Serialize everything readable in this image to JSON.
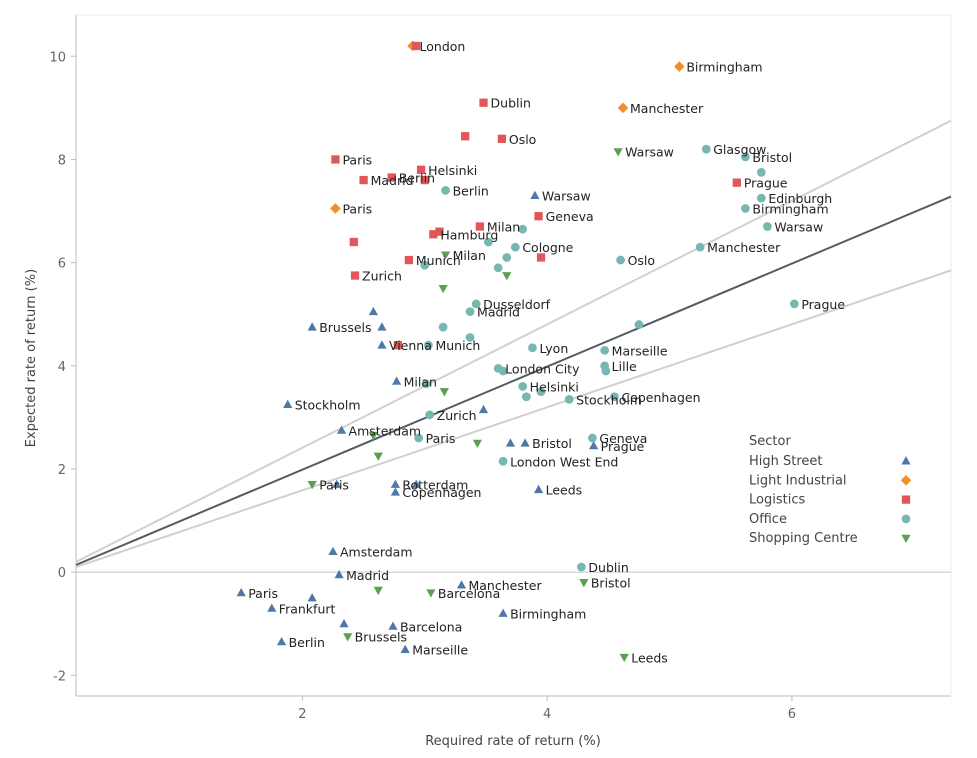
{
  "chart_data": {
    "type": "scatter",
    "title": "",
    "xlabel": "Required rate of return (%)",
    "ylabel": "Expected rate of return (%)",
    "xlim": [
      0.15,
      7.3
    ],
    "ylim": [
      -2.4,
      10.8
    ],
    "xticks": [
      2,
      4,
      6
    ],
    "yticks": [
      -2,
      0,
      2,
      4,
      6,
      8,
      10
    ],
    "grid": false,
    "zero_line": true,
    "legend": {
      "title": "Sector",
      "position": "right",
      "items": [
        {
          "name": "High Street",
          "color": "#4e79a7",
          "marker": "triangle-up"
        },
        {
          "name": "Light Industrial",
          "color": "#f28e2b",
          "marker": "diamond"
        },
        {
          "name": "Logistics",
          "color": "#e15759",
          "marker": "square"
        },
        {
          "name": "Office",
          "color": "#76b7b2",
          "marker": "circle"
        },
        {
          "name": "Shopping Centre",
          "color": "#59a14f",
          "marker": "triangle-down"
        }
      ]
    },
    "reference_lines": [
      {
        "style": "center",
        "color": "#555c66",
        "points": [
          [
            0.15,
            0.14
          ],
          [
            7.3,
            7.28
          ]
        ]
      },
      {
        "style": "band",
        "color": "#d0d0d0",
        "points": [
          [
            0.15,
            0.2
          ],
          [
            7.3,
            8.75
          ]
        ]
      },
      {
        "style": "band",
        "color": "#d0d0d0",
        "points": [
          [
            0.15,
            0.1
          ],
          [
            7.3,
            5.85
          ]
        ]
      }
    ],
    "series": [
      {
        "name": "High Street",
        "points": [
          {
            "x": 3.9,
            "y": 7.3,
            "label": "Warsaw"
          },
          {
            "x": 2.08,
            "y": 4.75,
            "label": "Brussels"
          },
          {
            "x": 2.58,
            "y": 5.05,
            "label": ""
          },
          {
            "x": 2.65,
            "y": 4.75,
            "label": ""
          },
          {
            "x": 2.65,
            "y": 4.4,
            "label": "Vienna"
          },
          {
            "x": 2.77,
            "y": 3.7,
            "label": "Milan"
          },
          {
            "x": 1.88,
            "y": 3.25,
            "label": "Stockholm"
          },
          {
            "x": 2.32,
            "y": 2.75,
            "label": "Amsterdam"
          },
          {
            "x": 3.48,
            "y": 3.15,
            "label": ""
          },
          {
            "x": 3.7,
            "y": 2.5,
            "label": ""
          },
          {
            "x": 3.82,
            "y": 2.5,
            "label": "Bristol"
          },
          {
            "x": 4.38,
            "y": 2.45,
            "label": "Prague"
          },
          {
            "x": 2.28,
            "y": 1.7,
            "label": ""
          },
          {
            "x": 2.76,
            "y": 1.7,
            "label": "Rotterdam"
          },
          {
            "x": 2.76,
            "y": 1.55,
            "label": "Copenhagen"
          },
          {
            "x": 2.93,
            "y": 1.7,
            "label": ""
          },
          {
            "x": 3.93,
            "y": 1.6,
            "label": "Leeds"
          },
          {
            "x": 2.25,
            "y": 0.4,
            "label": "Amsterdam"
          },
          {
            "x": 2.3,
            "y": -0.05,
            "label": "Madrid"
          },
          {
            "x": 1.5,
            "y": -0.4,
            "label": "Paris"
          },
          {
            "x": 1.75,
            "y": -0.7,
            "label": "Frankfurt"
          },
          {
            "x": 2.08,
            "y": -0.5,
            "label": ""
          },
          {
            "x": 1.83,
            "y": -1.35,
            "label": "Berlin"
          },
          {
            "x": 2.34,
            "y": -1.0,
            "label": ""
          },
          {
            "x": 2.74,
            "y": -1.05,
            "label": "Barcelona"
          },
          {
            "x": 2.84,
            "y": -1.5,
            "label": "Marseille"
          },
          {
            "x": 3.3,
            "y": -0.25,
            "label": "Manchester"
          },
          {
            "x": 3.64,
            "y": -0.8,
            "label": "Birmingham"
          }
        ]
      },
      {
        "name": "Light Industrial",
        "points": [
          {
            "x": 2.9,
            "y": 10.2,
            "label": "London"
          },
          {
            "x": 5.08,
            "y": 9.8,
            "label": "Birmingham"
          },
          {
            "x": 4.62,
            "y": 9.0,
            "label": "Manchester"
          },
          {
            "x": 2.27,
            "y": 7.05,
            "label": "Paris"
          }
        ]
      },
      {
        "name": "Logistics",
        "points": [
          {
            "x": 2.93,
            "y": 10.2,
            "label": ""
          },
          {
            "x": 3.48,
            "y": 9.1,
            "label": "Dublin"
          },
          {
            "x": 3.33,
            "y": 8.45,
            "label": ""
          },
          {
            "x": 3.63,
            "y": 8.4,
            "label": "Oslo"
          },
          {
            "x": 2.27,
            "y": 8.0,
            "label": "Paris"
          },
          {
            "x": 2.97,
            "y": 7.8,
            "label": "Helsinki"
          },
          {
            "x": 2.5,
            "y": 7.6,
            "label": "Madrid"
          },
          {
            "x": 2.73,
            "y": 7.65,
            "label": "Berlin"
          },
          {
            "x": 3.0,
            "y": 7.6,
            "label": ""
          },
          {
            "x": 5.55,
            "y": 7.55,
            "label": "Prague"
          },
          {
            "x": 3.93,
            "y": 6.9,
            "label": "Geneva"
          },
          {
            "x": 3.45,
            "y": 6.7,
            "label": "Milan"
          },
          {
            "x": 3.07,
            "y": 6.55,
            "label": "Hamburg"
          },
          {
            "x": 3.12,
            "y": 6.6,
            "label": ""
          },
          {
            "x": 2.42,
            "y": 6.4,
            "label": ""
          },
          {
            "x": 2.87,
            "y": 6.05,
            "label": "Munich"
          },
          {
            "x": 3.95,
            "y": 6.1,
            "label": ""
          },
          {
            "x": 2.43,
            "y": 5.75,
            "label": "Zurich"
          },
          {
            "x": 2.78,
            "y": 4.4,
            "label": ""
          }
        ]
      },
      {
        "name": "Office",
        "points": [
          {
            "x": 5.3,
            "y": 8.2,
            "label": "Glasgow"
          },
          {
            "x": 5.62,
            "y": 8.05,
            "label": "Bristol"
          },
          {
            "x": 5.75,
            "y": 7.75,
            "label": ""
          },
          {
            "x": 3.17,
            "y": 7.4,
            "label": "Berlin"
          },
          {
            "x": 5.62,
            "y": 7.05,
            "label": "Birmingham"
          },
          {
            "x": 5.75,
            "y": 7.25,
            "label": "Edinburgh"
          },
          {
            "x": 5.8,
            "y": 6.7,
            "label": "Warsaw"
          },
          {
            "x": 3.8,
            "y": 6.65,
            "label": ""
          },
          {
            "x": 3.52,
            "y": 6.4,
            "label": ""
          },
          {
            "x": 3.74,
            "y": 6.3,
            "label": "Cologne"
          },
          {
            "x": 3.67,
            "y": 6.1,
            "label": ""
          },
          {
            "x": 3.6,
            "y": 5.9,
            "label": ""
          },
          {
            "x": 5.25,
            "y": 6.3,
            "label": "Manchester"
          },
          {
            "x": 4.6,
            "y": 6.05,
            "label": "Oslo"
          },
          {
            "x": 3.0,
            "y": 5.95,
            "label": ""
          },
          {
            "x": 3.42,
            "y": 5.2,
            "label": "Dusseldorf"
          },
          {
            "x": 3.37,
            "y": 5.05,
            "label": "Madrid"
          },
          {
            "x": 6.02,
            "y": 5.2,
            "label": "Prague"
          },
          {
            "x": 3.15,
            "y": 4.75,
            "label": ""
          },
          {
            "x": 4.75,
            "y": 4.8,
            "label": ""
          },
          {
            "x": 3.37,
            "y": 4.55,
            "label": ""
          },
          {
            "x": 3.03,
            "y": 4.4,
            "label": "Munich"
          },
          {
            "x": 3.88,
            "y": 4.35,
            "label": "Lyon"
          },
          {
            "x": 4.47,
            "y": 4.3,
            "label": "Marseille"
          },
          {
            "x": 4.47,
            "y": 4.0,
            "label": "Lille"
          },
          {
            "x": 4.48,
            "y": 3.9,
            "label": ""
          },
          {
            "x": 3.6,
            "y": 3.95,
            "label": "London City"
          },
          {
            "x": 3.64,
            "y": 3.9,
            "label": ""
          },
          {
            "x": 3.01,
            "y": 3.65,
            "label": ""
          },
          {
            "x": 3.8,
            "y": 3.6,
            "label": "Helsinki"
          },
          {
            "x": 3.83,
            "y": 3.4,
            "label": ""
          },
          {
            "x": 3.95,
            "y": 3.5,
            "label": ""
          },
          {
            "x": 4.18,
            "y": 3.35,
            "label": "Stockholm"
          },
          {
            "x": 4.55,
            "y": 3.4,
            "label": "Copenhagen"
          },
          {
            "x": 3.04,
            "y": 3.05,
            "label": "Zurich"
          },
          {
            "x": 2.95,
            "y": 2.6,
            "label": "Paris"
          },
          {
            "x": 4.37,
            "y": 2.6,
            "label": "Geneva"
          },
          {
            "x": 3.64,
            "y": 2.15,
            "label": "London West End"
          },
          {
            "x": 4.28,
            "y": 0.1,
            "label": "Dublin"
          }
        ]
      },
      {
        "name": "Shopping Centre",
        "points": [
          {
            "x": 4.58,
            "y": 8.15,
            "label": "Warsaw"
          },
          {
            "x": 3.17,
            "y": 6.15,
            "label": "Milan"
          },
          {
            "x": 3.67,
            "y": 5.75,
            "label": ""
          },
          {
            "x": 3.15,
            "y": 5.5,
            "label": ""
          },
          {
            "x": 3.16,
            "y": 3.5,
            "label": ""
          },
          {
            "x": 2.58,
            "y": 2.65,
            "label": ""
          },
          {
            "x": 2.62,
            "y": 2.25,
            "label": ""
          },
          {
            "x": 3.43,
            "y": 2.5,
            "label": ""
          },
          {
            "x": 2.08,
            "y": 1.7,
            "label": "Paris"
          },
          {
            "x": 2.62,
            "y": -0.35,
            "label": ""
          },
          {
            "x": 3.05,
            "y": -0.4,
            "label": "Barcelona"
          },
          {
            "x": 2.37,
            "y": -1.25,
            "label": "Brussels"
          },
          {
            "x": 4.3,
            "y": -0.2,
            "label": "Bristol"
          },
          {
            "x": 4.63,
            "y": -1.65,
            "label": "Leeds"
          }
        ]
      }
    ]
  }
}
